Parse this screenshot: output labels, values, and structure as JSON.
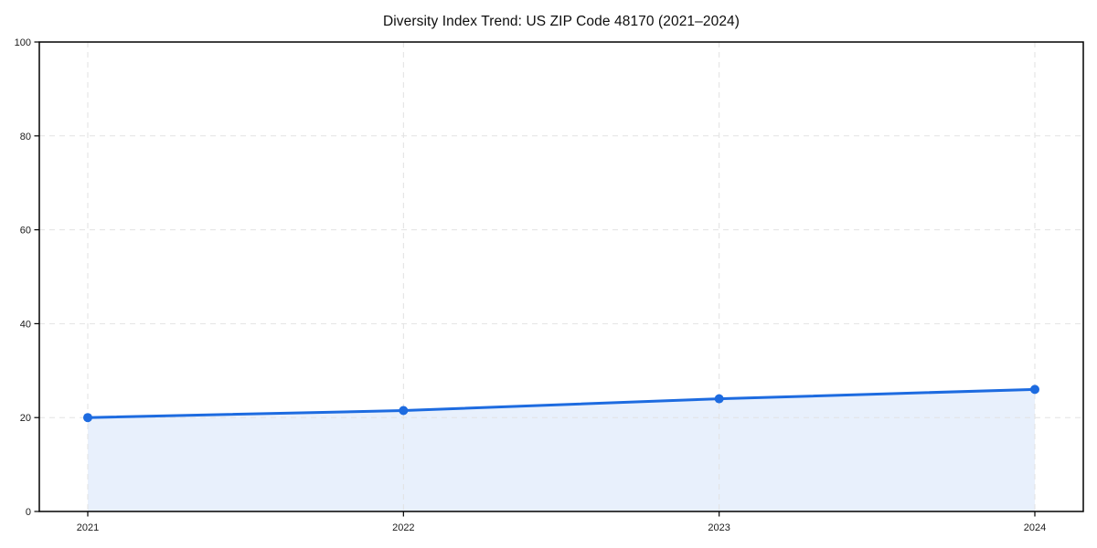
{
  "chart_data": {
    "type": "area",
    "title": "Diversity Index Trend: US ZIP Code 48170 (2021–2024)",
    "categories": [
      "2021",
      "2022",
      "2023",
      "2024"
    ],
    "series": [
      {
        "name": "Diversity Index",
        "values": [
          20,
          21.5,
          24,
          26
        ]
      }
    ],
    "xlabel": "",
    "ylabel": "",
    "ylim": [
      0,
      100
    ],
    "yticks": [
      0,
      20,
      40,
      60,
      80,
      100
    ],
    "grid": true,
    "grid_style": "dashed",
    "legend_position": "none",
    "markers": true,
    "colors": {
      "line": "#1d6be0",
      "marker": "#1d6be0",
      "fill": "#e8f0fc",
      "grid": "#e2e2e2",
      "axis": "#000000",
      "tick_text": "#1a1a1a",
      "title_text": "#0d0d0d",
      "background": "#ffffff"
    }
  }
}
